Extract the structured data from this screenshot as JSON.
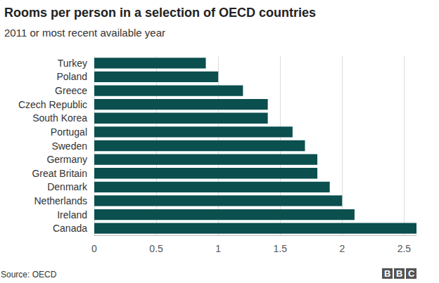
{
  "chart_data": {
    "type": "bar",
    "orientation": "horizontal",
    "title": "Rooms per person in a selection of OECD countries",
    "subtitle": "2011 or most recent available year",
    "source": "Source: OECD",
    "logo": "BBC",
    "categories": [
      "Turkey",
      "Poland",
      "Greece",
      "Czech Republic",
      "South Korea",
      "Portugal",
      "Sweden",
      "Germany",
      "Great Britain",
      "Denmark",
      "Netherlands",
      "Ireland",
      "Canada"
    ],
    "values": [
      0.9,
      1.0,
      1.2,
      1.4,
      1.4,
      1.6,
      1.7,
      1.8,
      1.8,
      1.9,
      2.0,
      2.1,
      2.6
    ],
    "color": "#0b4f4f",
    "xlim": [
      0,
      2.6
    ],
    "xticks": [
      0,
      0.5,
      1,
      1.5,
      2,
      2.5
    ],
    "grid": true
  }
}
